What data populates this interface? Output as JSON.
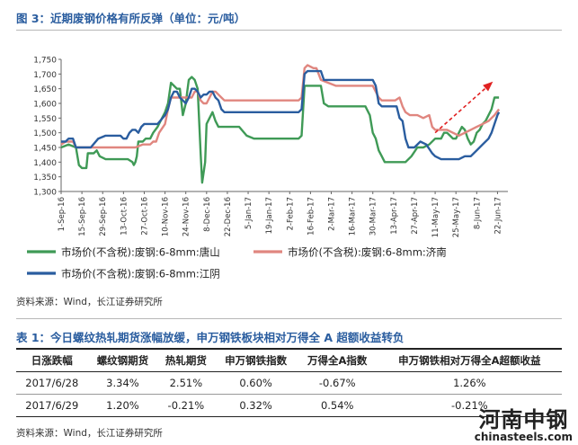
{
  "figure": {
    "title": "图 3：近期废钢价格有所反弹（单位：元/吨）",
    "source": "资料来源：Wind，长江证券研究所"
  },
  "chart_data": {
    "type": "line",
    "ylim": [
      1300,
      1750
    ],
    "y_ticks": [
      "1,300",
      "1,350",
      "1,400",
      "1,450",
      "1,500",
      "1,550",
      "1,600",
      "1,650",
      "1,700",
      "1,750"
    ],
    "x_labels": [
      "1-Sep-16",
      "15-Sep-16",
      "29-Sep-16",
      "13-Oct-16",
      "27-Oct-16",
      "10-Nov-16",
      "24-Nov-16",
      "8-Dec-16",
      "22-Dec-16",
      "5-Jan-17",
      "19-Jan-17",
      "2-Feb-17",
      "16-Feb-17",
      "2-Mar-17",
      "16-Mar-17",
      "30-Mar-17",
      "13-Apr-17",
      "27-Apr-17",
      "11-May-17",
      "25-May-17",
      "8-Jun-17",
      "22-Jun-17"
    ],
    "x_range": [
      0,
      301
    ],
    "series": [
      {
        "name": "市场价(不含税):废钢:6-8mm:唐山",
        "color": "#3f9a56",
        "points": [
          [
            0,
            1450
          ],
          [
            5,
            1460
          ],
          [
            10,
            1450
          ],
          [
            12,
            1390
          ],
          [
            14,
            1380
          ],
          [
            17,
            1380
          ],
          [
            18,
            1430
          ],
          [
            22,
            1430
          ],
          [
            24,
            1440
          ],
          [
            26,
            1420
          ],
          [
            30,
            1410
          ],
          [
            45,
            1410
          ],
          [
            48,
            1400
          ],
          [
            49,
            1390
          ],
          [
            50,
            1400
          ],
          [
            51,
            1420
          ],
          [
            52,
            1470
          ],
          [
            55,
            1470
          ],
          [
            57,
            1480
          ],
          [
            60,
            1480
          ],
          [
            62,
            1500
          ],
          [
            65,
            1520
          ],
          [
            70,
            1570
          ],
          [
            72,
            1600
          ],
          [
            74,
            1670
          ],
          [
            76,
            1660
          ],
          [
            78,
            1650
          ],
          [
            80,
            1650
          ],
          [
            82,
            1560
          ],
          [
            84,
            1600
          ],
          [
            85,
            1640
          ],
          [
            86,
            1680
          ],
          [
            88,
            1690
          ],
          [
            90,
            1680
          ],
          [
            92,
            1650
          ],
          [
            94,
            1430
          ],
          [
            95,
            1330
          ],
          [
            97,
            1400
          ],
          [
            98,
            1530
          ],
          [
            100,
            1550
          ],
          [
            102,
            1570
          ],
          [
            104,
            1540
          ],
          [
            106,
            1520
          ],
          [
            110,
            1520
          ],
          [
            115,
            1520
          ],
          [
            120,
            1520
          ],
          [
            125,
            1490
          ],
          [
            130,
            1480
          ],
          [
            135,
            1480
          ],
          [
            140,
            1480
          ],
          [
            145,
            1480
          ],
          [
            150,
            1480
          ],
          [
            156,
            1480
          ],
          [
            160,
            1480
          ],
          [
            162,
            1490
          ],
          [
            164,
            1660
          ],
          [
            170,
            1660
          ],
          [
            175,
            1660
          ],
          [
            177,
            1600
          ],
          [
            180,
            1590
          ],
          [
            185,
            1590
          ],
          [
            200,
            1590
          ],
          [
            205,
            1590
          ],
          [
            208,
            1560
          ],
          [
            210,
            1500
          ],
          [
            212,
            1480
          ],
          [
            214,
            1440
          ],
          [
            216,
            1420
          ],
          [
            218,
            1400
          ],
          [
            225,
            1400
          ],
          [
            232,
            1400
          ],
          [
            236,
            1420
          ],
          [
            240,
            1450
          ],
          [
            244,
            1450
          ],
          [
            248,
            1460
          ],
          [
            252,
            1480
          ],
          [
            256,
            1480
          ],
          [
            258,
            1500
          ],
          [
            260,
            1500
          ],
          [
            262,
            1490
          ],
          [
            264,
            1480
          ],
          [
            266,
            1480
          ],
          [
            268,
            1500
          ],
          [
            270,
            1520
          ],
          [
            272,
            1510
          ],
          [
            274,
            1480
          ],
          [
            276,
            1460
          ],
          [
            278,
            1470
          ],
          [
            280,
            1500
          ],
          [
            282,
            1510
          ],
          [
            284,
            1530
          ],
          [
            286,
            1540
          ],
          [
            288,
            1560
          ],
          [
            290,
            1580
          ],
          [
            292,
            1620
          ],
          [
            295,
            1620
          ]
        ]
      },
      {
        "name": "市场价(不含税):废钢:6-8mm:济南",
        "color": "#e0867f",
        "points": [
          [
            0,
            1460
          ],
          [
            3,
            1470
          ],
          [
            8,
            1470
          ],
          [
            10,
            1450
          ],
          [
            15,
            1450
          ],
          [
            50,
            1450
          ],
          [
            55,
            1460
          ],
          [
            60,
            1460
          ],
          [
            62,
            1470
          ],
          [
            64,
            1470
          ],
          [
            66,
            1500
          ],
          [
            70,
            1530
          ],
          [
            72,
            1580
          ],
          [
            74,
            1620
          ],
          [
            80,
            1620
          ],
          [
            85,
            1620
          ],
          [
            88,
            1620
          ],
          [
            90,
            1640
          ],
          [
            92,
            1640
          ],
          [
            94,
            1610
          ],
          [
            96,
            1600
          ],
          [
            98,
            1600
          ],
          [
            100,
            1620
          ],
          [
            102,
            1640
          ],
          [
            104,
            1640
          ],
          [
            106,
            1630
          ],
          [
            108,
            1620
          ],
          [
            110,
            1610
          ],
          [
            115,
            1610
          ],
          [
            120,
            1610
          ],
          [
            140,
            1610
          ],
          [
            160,
            1610
          ],
          [
            162,
            1620
          ],
          [
            164,
            1720
          ],
          [
            166,
            1730
          ],
          [
            170,
            1720
          ],
          [
            172,
            1720
          ],
          [
            175,
            1680
          ],
          [
            180,
            1670
          ],
          [
            185,
            1660
          ],
          [
            190,
            1660
          ],
          [
            200,
            1660
          ],
          [
            210,
            1660
          ],
          [
            212,
            1640
          ],
          [
            214,
            1620
          ],
          [
            216,
            1610
          ],
          [
            220,
            1610
          ],
          [
            225,
            1610
          ],
          [
            228,
            1620
          ],
          [
            230,
            1590
          ],
          [
            232,
            1570
          ],
          [
            235,
            1560
          ],
          [
            240,
            1560
          ],
          [
            244,
            1550
          ],
          [
            248,
            1560
          ],
          [
            250,
            1520
          ],
          [
            252,
            1510
          ],
          [
            256,
            1510
          ],
          [
            260,
            1510
          ],
          [
            264,
            1500
          ],
          [
            268,
            1490
          ],
          [
            272,
            1500
          ],
          [
            276,
            1510
          ],
          [
            280,
            1520
          ],
          [
            284,
            1530
          ],
          [
            288,
            1540
          ],
          [
            290,
            1550
          ],
          [
            292,
            1560
          ],
          [
            295,
            1580
          ]
        ]
      },
      {
        "name": "市场价(不含税):废钢:6-8mm:江阴",
        "color": "#2a5d9f",
        "points": [
          [
            0,
            1470
          ],
          [
            3,
            1470
          ],
          [
            5,
            1480
          ],
          [
            8,
            1480
          ],
          [
            10,
            1450
          ],
          [
            15,
            1450
          ],
          [
            20,
            1450
          ],
          [
            25,
            1480
          ],
          [
            30,
            1490
          ],
          [
            40,
            1490
          ],
          [
            42,
            1480
          ],
          [
            44,
            1480
          ],
          [
            46,
            1500
          ],
          [
            48,
            1510
          ],
          [
            50,
            1510
          ],
          [
            52,
            1500
          ],
          [
            54,
            1520
          ],
          [
            56,
            1530
          ],
          [
            60,
            1530
          ],
          [
            65,
            1530
          ],
          [
            70,
            1560
          ],
          [
            72,
            1580
          ],
          [
            74,
            1620
          ],
          [
            76,
            1640
          ],
          [
            78,
            1640
          ],
          [
            80,
            1620
          ],
          [
            82,
            1610
          ],
          [
            84,
            1600
          ],
          [
            86,
            1620
          ],
          [
            88,
            1650
          ],
          [
            90,
            1650
          ],
          [
            92,
            1640
          ],
          [
            94,
            1620
          ],
          [
            96,
            1630
          ],
          [
            98,
            1630
          ],
          [
            100,
            1640
          ],
          [
            102,
            1640
          ],
          [
            104,
            1620
          ],
          [
            106,
            1610
          ],
          [
            108,
            1580
          ],
          [
            110,
            1570
          ],
          [
            115,
            1570
          ],
          [
            120,
            1570
          ],
          [
            140,
            1570
          ],
          [
            150,
            1570
          ],
          [
            155,
            1570
          ],
          [
            160,
            1570
          ],
          [
            162,
            1580
          ],
          [
            164,
            1700
          ],
          [
            166,
            1710
          ],
          [
            170,
            1710
          ],
          [
            175,
            1710
          ],
          [
            177,
            1680
          ],
          [
            180,
            1680
          ],
          [
            185,
            1680
          ],
          [
            200,
            1680
          ],
          [
            210,
            1680
          ],
          [
            212,
            1660
          ],
          [
            214,
            1600
          ],
          [
            216,
            1590
          ],
          [
            220,
            1590
          ],
          [
            226,
            1590
          ],
          [
            228,
            1550
          ],
          [
            230,
            1540
          ],
          [
            232,
            1480
          ],
          [
            234,
            1450
          ],
          [
            238,
            1450
          ],
          [
            242,
            1470
          ],
          [
            246,
            1460
          ],
          [
            250,
            1430
          ],
          [
            252,
            1420
          ],
          [
            256,
            1410
          ],
          [
            260,
            1410
          ],
          [
            268,
            1410
          ],
          [
            272,
            1420
          ],
          [
            276,
            1420
          ],
          [
            280,
            1440
          ],
          [
            284,
            1460
          ],
          [
            288,
            1480
          ],
          [
            290,
            1500
          ],
          [
            292,
            1530
          ],
          [
            294,
            1560
          ],
          [
            295,
            1570
          ]
        ]
      }
    ],
    "annotation": "dashed red arrow indicating upward rebound"
  },
  "table": {
    "title": "表 1：今日螺纹热轧期货涨幅放缓，申万钢铁板块相对万得全 A 超额收益转负",
    "headers": [
      "日涨跌幅",
      "螺纹钢期货",
      "热轧期货",
      "申万钢铁指数",
      "万得全A指数",
      "申万钢铁相对万得全A超额收益"
    ],
    "rows": [
      [
        "2017/6/28",
        "3.34%",
        "2.51%",
        "0.60%",
        "-0.67%",
        "1.26%"
      ],
      [
        "2017/6/29",
        "1.20%",
        "-0.21%",
        "0.32%",
        "0.54%",
        "-0.21%"
      ]
    ],
    "source": "资料来源：Wind，长江证券研究所"
  },
  "watermark": {
    "cn": "河南中钢",
    "en": "chinasteels.com"
  }
}
